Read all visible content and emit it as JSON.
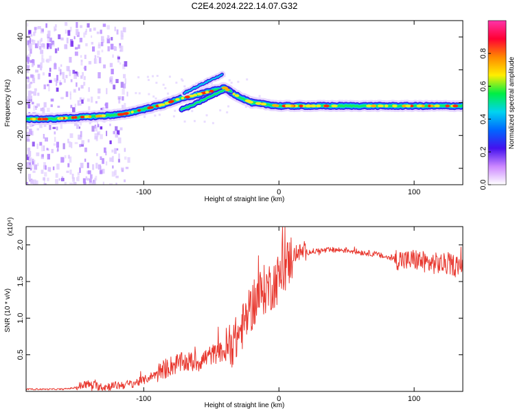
{
  "title": "C2E4.2024.222.14.07.G32",
  "colors": {
    "snr_line": "#e8382f",
    "track_core": "#ff2a00",
    "axis": "#000000"
  },
  "chart_data": [
    {
      "type": "heatmap",
      "xlabel": "Height of straight line (km)",
      "ylabel": "Frequency (Hz)",
      "xlim": [
        -187,
        136
      ],
      "ylim": [
        -50,
        50
      ],
      "xticks": [
        -100,
        0,
        100
      ],
      "yticks": [
        -40,
        -20,
        0,
        20,
        40
      ],
      "colorbar": {
        "label": "Normalized spectral amplitude",
        "range": [
          0,
          1
        ],
        "ticks": [
          "0.0",
          "0.2",
          "0.4",
          "0.6",
          "0.8"
        ],
        "colormap": [
          "#ffffff",
          "#cc88ff",
          "#4411ee",
          "#0066ff",
          "#00d4f0",
          "#00ee44",
          "#ffee00",
          "#ff8800",
          "#ff0033",
          "#ff33aa"
        ]
      },
      "main_track": [
        [
          -187,
          -10
        ],
        [
          -170,
          -10
        ],
        [
          -150,
          -9
        ],
        [
          -130,
          -8
        ],
        [
          -115,
          -7
        ],
        [
          -105,
          -5
        ],
        [
          -95,
          -3
        ],
        [
          -85,
          -1
        ],
        [
          -75,
          2
        ],
        [
          -65,
          4
        ],
        [
          -55,
          6
        ],
        [
          -45,
          8
        ],
        [
          -40,
          9
        ],
        [
          -35,
          6
        ],
        [
          -28,
          3
        ],
        [
          -20,
          0
        ],
        [
          -10,
          -1
        ],
        [
          0,
          -2
        ],
        [
          20,
          -2
        ],
        [
          50,
          -2
        ],
        [
          80,
          -2
        ],
        [
          100,
          -2
        ],
        [
          120,
          -2
        ],
        [
          136,
          -2
        ]
      ],
      "secondary_track": [
        [
          -72,
          -4
        ],
        [
          -65,
          -2
        ],
        [
          -55,
          2
        ],
        [
          -45,
          6
        ],
        [
          -40,
          8
        ],
        [
          -35,
          7
        ]
      ],
      "upper_echo": [
        [
          -70,
          6
        ],
        [
          -60,
          10
        ],
        [
          -50,
          14
        ],
        [
          -42,
          17
        ]
      ]
    },
    {
      "type": "line",
      "xlabel": "Height of straight line (km)",
      "ylabel": "SNR (10 * v/v)",
      "y_multiplier": "(x10⁴)",
      "xlim": [
        -187,
        136
      ],
      "ylim": [
        0,
        2.25
      ],
      "xticks": [
        -100,
        0,
        100
      ],
      "yticks": [
        "0.5",
        "1.0",
        "1.5",
        "2.0"
      ],
      "series": [
        {
          "x": [
            -187,
            -160,
            -150,
            -143,
            -130,
            -120,
            -110,
            -100,
            -90,
            -80,
            -70,
            -60,
            -50,
            -40,
            -32,
            -25,
            -20,
            -15,
            -10,
            -5,
            0,
            5,
            10,
            15,
            20,
            30,
            40,
            50,
            60,
            70,
            80,
            90,
            95,
            100,
            105,
            110,
            115,
            120,
            136
          ],
          "y": [
            0.03,
            0.03,
            0.05,
            0.1,
            0.06,
            0.08,
            0.1,
            0.15,
            0.25,
            0.35,
            0.4,
            0.4,
            0.5,
            0.55,
            0.7,
            0.95,
            1.15,
            1.3,
            1.4,
            1.45,
            1.55,
            1.7,
            1.85,
            1.9,
            1.9,
            1.92,
            1.93,
            1.93,
            1.9,
            1.88,
            1.83,
            1.8,
            1.78,
            1.8,
            1.78,
            1.75,
            1.75,
            1.74,
            1.72
          ]
        }
      ]
    }
  ]
}
